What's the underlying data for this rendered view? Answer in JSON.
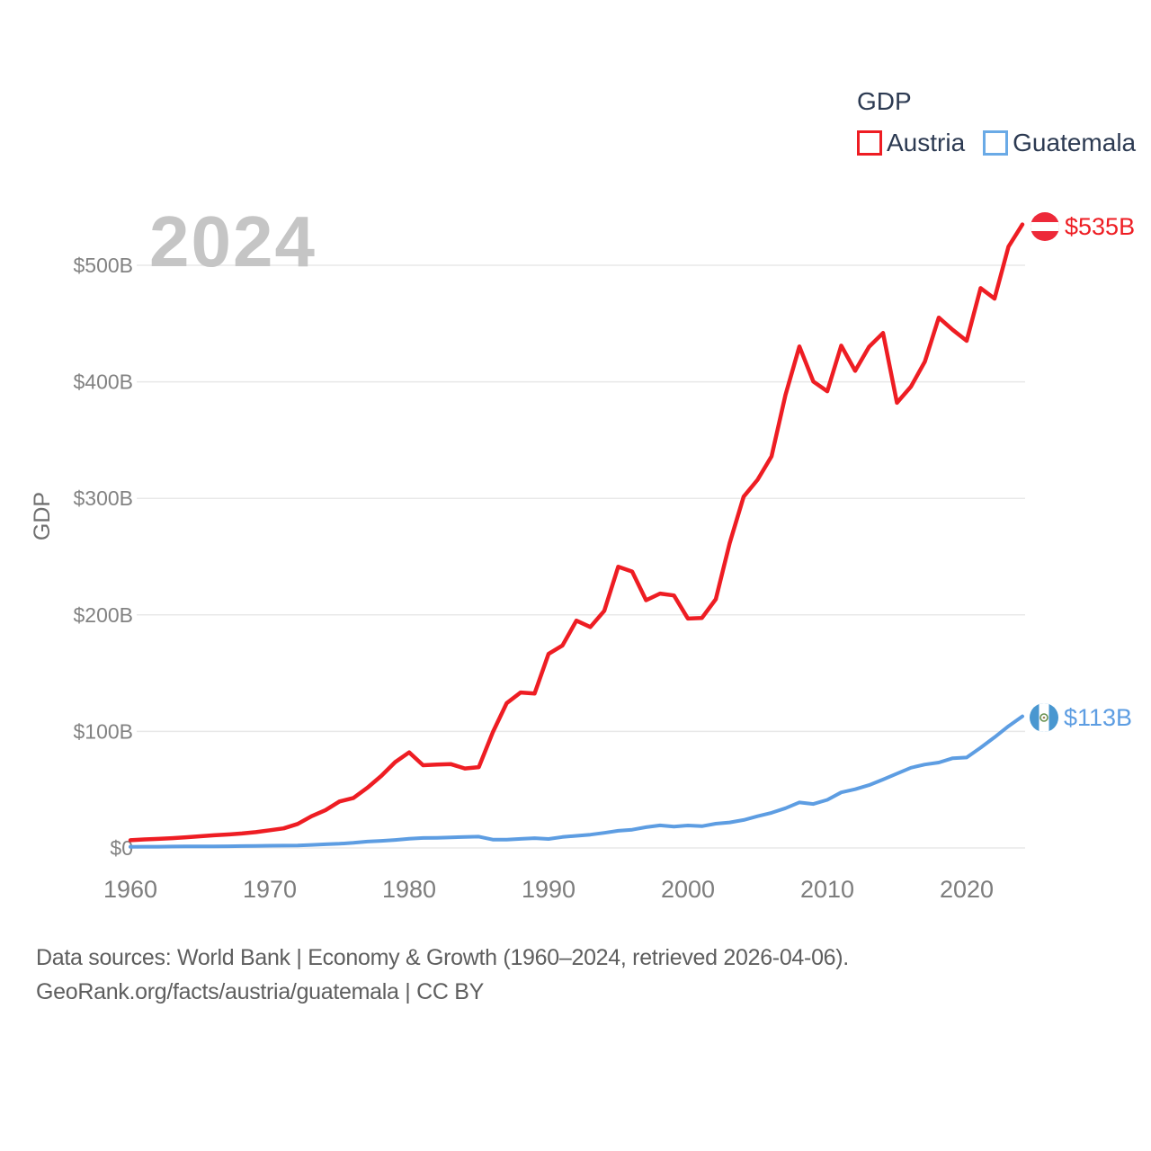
{
  "watermark": "2024",
  "y_axis_title": "GDP",
  "legend": {
    "title": "GDP",
    "series": [
      {
        "label": "Austria",
        "color": "#ee1d23"
      },
      {
        "label": "Guatemala",
        "color": "#6aaae6"
      }
    ]
  },
  "end_labels": {
    "austria": {
      "value": "$535B",
      "color": "#ee1d23",
      "flag": "austria-flag"
    },
    "guatemala": {
      "value": "$113B",
      "color": "#5d9de2",
      "flag": "guatemala-flag"
    }
  },
  "footer": {
    "line1": "Data sources: World Bank | Economy & Growth (1960–2024, retrieved 2026-04-06).",
    "line2": "GeoRank.org/facts/austria/guatemala | CC BY"
  },
  "chart_data": {
    "type": "line",
    "title": "GDP",
    "ylabel": "GDP",
    "xlabel": "",
    "xlim": [
      1960,
      2024
    ],
    "ylim": [
      0,
      550
    ],
    "grid": "horizontal",
    "legend_position": "top-right",
    "x_ticks": [
      1960,
      1970,
      1980,
      1990,
      2000,
      2010,
      2020
    ],
    "y_ticks": [
      {
        "value": 0,
        "label": "$0"
      },
      {
        "value": 100,
        "label": "$100B"
      },
      {
        "value": 200,
        "label": "$200B"
      },
      {
        "value": 300,
        "label": "$300B"
      },
      {
        "value": 400,
        "label": "$400B"
      },
      {
        "value": 500,
        "label": "$500B"
      }
    ],
    "x": [
      1960,
      1961,
      1962,
      1963,
      1964,
      1965,
      1966,
      1967,
      1968,
      1969,
      1970,
      1971,
      1972,
      1973,
      1974,
      1975,
      1976,
      1977,
      1978,
      1979,
      1980,
      1981,
      1982,
      1983,
      1984,
      1985,
      1986,
      1987,
      1988,
      1989,
      1990,
      1991,
      1992,
      1993,
      1994,
      1995,
      1996,
      1997,
      1998,
      1999,
      2000,
      2001,
      2002,
      2003,
      2004,
      2005,
      2006,
      2007,
      2008,
      2009,
      2010,
      2011,
      2012,
      2013,
      2014,
      2015,
      2016,
      2017,
      2018,
      2019,
      2020,
      2021,
      2022,
      2023,
      2024
    ],
    "series": [
      {
        "name": "Austria",
        "color": "#ee1d23",
        "end_label": "$535B",
        "values": [
          6.6,
          7.3,
          7.8,
          8.4,
          9.2,
          10.0,
          10.9,
          11.6,
          12.4,
          13.6,
          15.2,
          16.8,
          20.6,
          27.2,
          32.5,
          39.9,
          42.9,
          51.6,
          61.8,
          73.7,
          82.0,
          71.0,
          71.6,
          71.9,
          68.2,
          69.4,
          99.2,
          124.3,
          133.4,
          132.5,
          166.5,
          173.8,
          195.1,
          189.6,
          203.5,
          241.3,
          237.2,
          212.6,
          218.3,
          216.7,
          196.8,
          197.3,
          213.4,
          261.7,
          301.5,
          316.0,
          336.0,
          388.7,
          430.3,
          400.2,
          391.9,
          431.0,
          409.4,
          430.1,
          441.9,
          382.0,
          395.8,
          417.3,
          455.1,
          444.6,
          435.2,
          480.4,
          471.4,
          516.0,
          535.0
        ]
      },
      {
        "name": "Guatemala",
        "color": "#5d9de2",
        "end_label": "$113B",
        "values": [
          1.0,
          1.1,
          1.1,
          1.2,
          1.3,
          1.3,
          1.4,
          1.5,
          1.6,
          1.7,
          1.9,
          2.0,
          2.1,
          2.6,
          3.2,
          3.6,
          4.4,
          5.5,
          6.1,
          6.9,
          7.9,
          8.6,
          8.7,
          9.0,
          9.5,
          9.7,
          7.2,
          7.1,
          7.8,
          8.4,
          7.7,
          9.4,
          10.4,
          11.4,
          13.0,
          14.7,
          15.7,
          17.8,
          19.4,
          18.3,
          19.3,
          18.7,
          20.8,
          21.9,
          24.0,
          27.2,
          30.2,
          34.1,
          39.1,
          37.7,
          41.3,
          47.7,
          50.4,
          53.9,
          58.7,
          63.8,
          68.8,
          71.6,
          73.3,
          77.0,
          77.6,
          86.0,
          95.0,
          104.5,
          113.0
        ]
      }
    ]
  }
}
